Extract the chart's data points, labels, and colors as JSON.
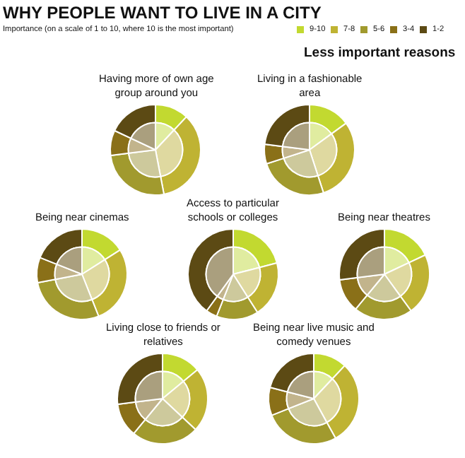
{
  "chart_data": [
    {
      "type": "donut",
      "title": "Having more of own age group around you",
      "categories": [
        "9-10",
        "7-8",
        "5-6",
        "3-4",
        "1-2"
      ],
      "series": [
        {
          "values": [
            12,
            35,
            26,
            9,
            18
          ],
          "colors": [
            "#c2d930",
            "#bfb333",
            "#a19a2e",
            "#8a7018",
            "#5c4a14"
          ]
        },
        {
          "values": [
            12,
            35,
            26,
            9,
            18
          ],
          "colors": [
            "#e0eca0",
            "#dfd9a0",
            "#cdc99c",
            "#c2b48c",
            "#aa9f7e"
          ]
        }
      ],
      "legend": "top",
      "legend_title": "Importance (on a scale of 1 to 10, where 10 is the most important)",
      "subtitle": "Less important reasons",
      "annotations": [
        "WHY PEOPLE WANT TO LIVE IN A CITY"
      ]
    },
    {
      "type": "donut",
      "title": "Living in a fashionable area",
      "categories": [
        null,
        null,
        null,
        null,
        null
      ],
      "series": [
        {
          "values": [
            15,
            30,
            25,
            7,
            23
          ],
          "colors": [
            "#c2d930",
            "#bfb333",
            "#a19a2e",
            "#8a7018",
            "#5c4a14"
          ]
        },
        {
          "values": [
            15,
            30,
            25,
            7,
            23
          ],
          "colors": [
            "#e0eca0",
            "#dfd9a0",
            "#cdc99c",
            "#c2b48c",
            "#aa9f7e"
          ]
        }
      ],
      "legend": "top"
    },
    {
      "type": "donut",
      "title": "Being near cinemas",
      "categories": [
        null,
        null,
        null,
        null,
        null
      ],
      "series": [
        {
          "values": [
            16,
            28,
            28,
            9,
            19
          ],
          "colors": [
            "#c2d930",
            "#bfb333",
            "#a19a2e",
            "#8a7018",
            "#5c4a14"
          ]
        },
        {
          "values": [
            16,
            28,
            28,
            9,
            19
          ],
          "colors": [
            "#e0eca0",
            "#dfd9a0",
            "#cdc99c",
            "#c2b48c",
            "#aa9f7e"
          ]
        }
      ],
      "legend": "top"
    },
    {
      "type": "donut",
      "title": "Access to particular schools or colleges",
      "categories": [
        null,
        null,
        null,
        null,
        null
      ],
      "series": [
        {
          "values": [
            21,
            20,
            15,
            4,
            40
          ],
          "colors": [
            "#c2d930",
            "#bfb333",
            "#a19a2e",
            "#8a7018",
            "#5c4a14"
          ]
        },
        {
          "values": [
            21,
            20,
            15,
            4,
            40
          ],
          "colors": [
            "#e0eca0",
            "#dfd9a0",
            "#cdc99c",
            "#c2b48c",
            "#aa9f7e"
          ]
        }
      ],
      "legend": "top"
    },
    {
      "type": "donut",
      "title": "Being near theatres",
      "categories": [
        null,
        null,
        null,
        null,
        null
      ],
      "series": [
        {
          "values": [
            18,
            22,
            21,
            12,
            27
          ],
          "colors": [
            "#c2d930",
            "#bfb333",
            "#a19a2e",
            "#8a7018",
            "#5c4a14"
          ]
        },
        {
          "values": [
            18,
            22,
            21,
            12,
            27
          ],
          "colors": [
            "#e0eca0",
            "#dfd9a0",
            "#cdc99c",
            "#c2b48c",
            "#aa9f7e"
          ]
        }
      ],
      "legend": "top"
    },
    {
      "type": "donut",
      "title": "Living close to friends or relatives",
      "categories": [
        null,
        null,
        null,
        null,
        null
      ],
      "series": [
        {
          "values": [
            14,
            23,
            24,
            12,
            27
          ],
          "colors": [
            "#c2d930",
            "#bfb333",
            "#a19a2e",
            "#8a7018",
            "#5c4a14"
          ]
        },
        {
          "values": [
            14,
            23,
            24,
            12,
            27
          ],
          "colors": [
            "#e0eca0",
            "#dfd9a0",
            "#cdc99c",
            "#c2b48c",
            "#aa9f7e"
          ]
        }
      ],
      "legend": "top"
    },
    {
      "type": "donut",
      "title": "Being near live music and comedy venues",
      "categories": [
        null,
        null,
        null,
        null,
        null
      ],
      "series": [
        {
          "values": [
            12,
            30,
            27,
            10,
            21
          ],
          "colors": [
            "#c2d930",
            "#bfb333",
            "#a19a2e",
            "#8a7018",
            "#5c4a14"
          ]
        },
        {
          "values": [
            12,
            30,
            27,
            10,
            21
          ],
          "colors": [
            "#e0eca0",
            "#dfd9a0",
            "#cdc99c",
            "#c2b48c",
            "#aa9f7e"
          ]
        }
      ],
      "legend": "top"
    }
  ]
}
